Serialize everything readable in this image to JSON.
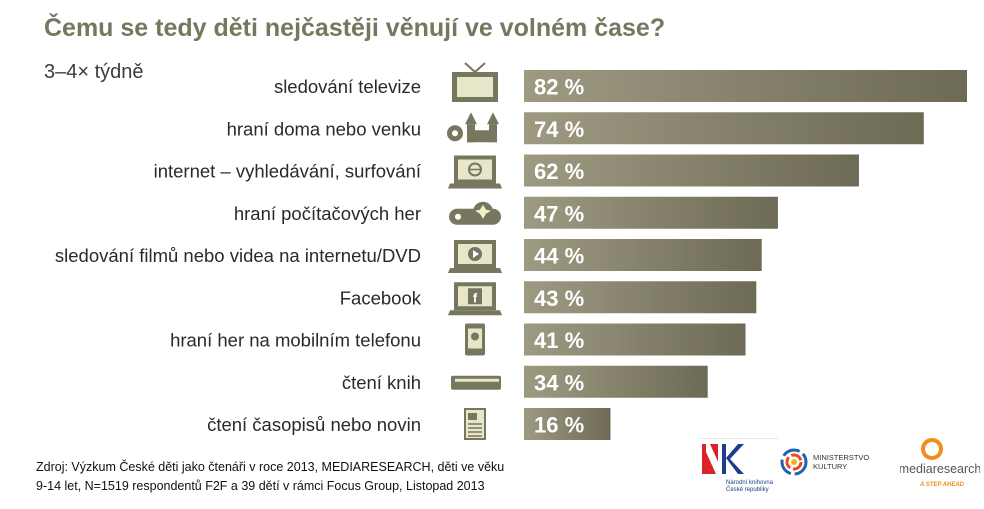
{
  "title": "Čemu se tedy děti nejčastěji věnují ve volném čase?",
  "subtitle": "3–4× týdně",
  "chart_data": {
    "type": "bar",
    "orientation": "horizontal",
    "categories": [
      "sledování televize",
      "hraní doma nebo venku",
      "internet – vyhledávání, surfování",
      "hraní počítačových her",
      "sledování filmů nebo videa na internetu/DVD",
      "Facebook",
      "hraní her na mobilním telefonu",
      "čtení knih",
      "čtení časopisů nebo novin"
    ],
    "values": [
      82,
      74,
      62,
      47,
      44,
      43,
      41,
      34,
      16
    ],
    "value_labels": [
      "82 %",
      "74 %",
      "62 %",
      "47 %",
      "44 %",
      "43 %",
      "41 %",
      "34 %",
      "16 %"
    ],
    "icons": [
      "tv-icon",
      "playground-icon",
      "laptop-icon",
      "gamepad-icon",
      "video-player-icon",
      "facebook-icon",
      "mobile-phone-icon",
      "book-icon",
      "newspaper-icon"
    ],
    "xlim": [
      0,
      82
    ],
    "colors": {
      "bar_left": "#9e9a82",
      "bar_right": "#6d6a55",
      "label": "#ffffff",
      "icon": "#77765f"
    }
  },
  "source": {
    "line1": "Zdroj: Výzkum České děti jako čtenáři v roce 2013,  MEDIARESEARCH, děti ve věku",
    "line2": "9-14 let, N=1519 respondentů F2F a 39 dětí v rámci Focus Group, Listopad 2013"
  },
  "logos": {
    "nk": {
      "text": "NK",
      "caption1": "Národní knihovna",
      "caption2": "České republiky"
    },
    "ministry": {
      "line1": "MINISTERSTVO",
      "line2": "KULTURY"
    },
    "mediaresearch": {
      "name": "mediaresearch",
      "tagline": "A STEP AHEAD"
    }
  }
}
